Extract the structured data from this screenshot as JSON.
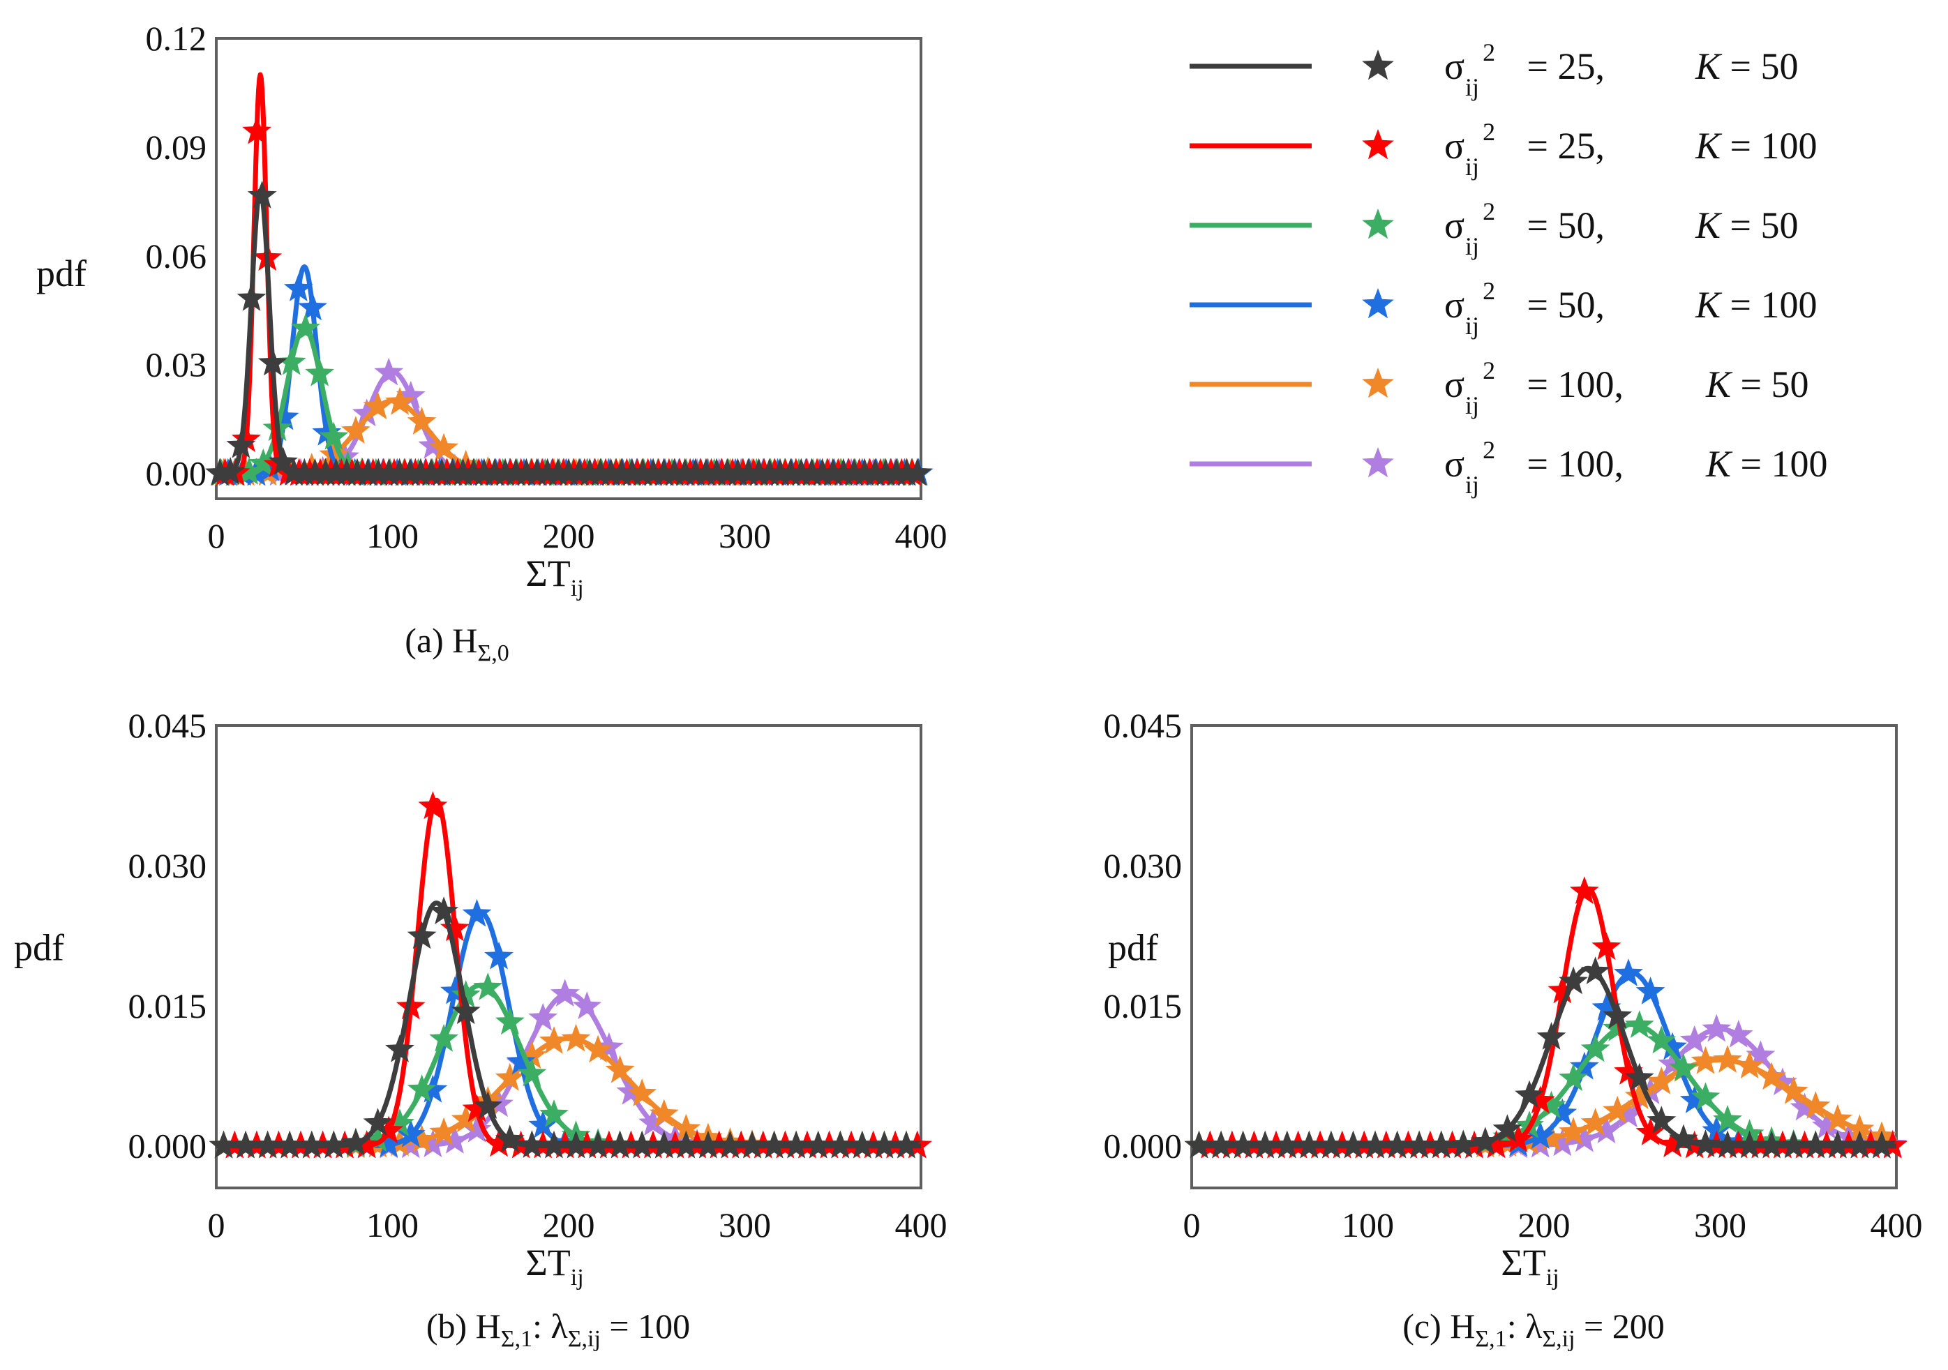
{
  "series_styles": [
    {
      "sigma2": "25",
      "K": "50",
      "color": "#3d3d3d"
    },
    {
      "sigma2": "25",
      "K": "100",
      "color": "#ff0000"
    },
    {
      "sigma2": "50",
      "K": "50",
      "color": "#3cae63"
    },
    {
      "sigma2": "50",
      "K": "100",
      "color": "#1f6fe0"
    },
    {
      "sigma2": "100",
      "K": "50",
      "color": "#f0882a"
    },
    {
      "sigma2": "100",
      "K": "100",
      "color": "#b07ee0"
    }
  ],
  "legend": {
    "sigma": "σ",
    "sub": "ij",
    "sup": "2",
    "eq": " = ",
    "comma": ",",
    "k_label": "K"
  },
  "chart_data": [
    {
      "type": "line",
      "caption": {
        "prefix": "(a) H",
        "sub": "Σ,0",
        "suffix": ""
      },
      "xlabel": {
        "main": "ΣT",
        "sub": "ij"
      },
      "ylabel": "pdf",
      "xlim": [
        0,
        400
      ],
      "ylim": [
        -0.007,
        0.12
      ],
      "xticks": [
        "0",
        "100",
        "200",
        "300",
        "400"
      ],
      "yticks": [
        "0.00",
        "0.03",
        "0.06",
        "0.09",
        "0.12"
      ],
      "ytick_values": [
        0,
        0.03,
        0.06,
        0.09,
        0.12
      ],
      "marker_spacing": [
        6,
        6,
        8,
        8,
        12.5,
        12.5
      ],
      "series": [
        {
          "name": "σij² = 25, K = 50",
          "mean": 25,
          "peak": 0.078,
          "sd": 5.1
        },
        {
          "name": "σij² = 25, K = 100",
          "mean": 25,
          "peak": 0.11,
          "sd": 3.6
        },
        {
          "name": "σij² = 50, K = 50",
          "mean": 50,
          "peak": 0.04,
          "sd": 10
        },
        {
          "name": "σij² = 50, K = 100",
          "mean": 50,
          "peak": 0.057,
          "sd": 7
        },
        {
          "name": "σij² = 100, K = 50",
          "mean": 100,
          "peak": 0.02,
          "sd": 20
        },
        {
          "name": "σij² = 100, K = 100",
          "mean": 100,
          "peak": 0.028,
          "sd": 14.1
        }
      ]
    },
    {
      "type": "line",
      "caption": {
        "prefix": "(b) H",
        "sub": "Σ,1",
        "suffix": ": λ",
        "sub2": "Σ,ij",
        "suffix2": " = 100"
      },
      "xlabel": {
        "main": "ΣT",
        "sub": "ij"
      },
      "ylabel": "pdf",
      "xlim": [
        0,
        400
      ],
      "ylim": [
        -0.0045,
        0.045
      ],
      "xticks": [
        "0",
        "100",
        "200",
        "300",
        "400"
      ],
      "yticks": [
        "0.000",
        "0.015",
        "0.030",
        "0.045"
      ],
      "ytick_values": [
        0,
        0.015,
        0.03,
        0.045
      ],
      "marker_spacing": [
        12.5,
        12.5,
        12.5,
        12.5,
        12.5,
        12.5
      ],
      "series": [
        {
          "name": "σij² = 25, K = 50",
          "mean": 125,
          "peak": 0.026,
          "sd": 15.3
        },
        {
          "name": "σij² = 25, K = 100",
          "mean": 125,
          "peak": 0.037,
          "sd": 10.8
        },
        {
          "name": "σij² = 50, K = 50",
          "mean": 150,
          "peak": 0.0172,
          "sd": 23
        },
        {
          "name": "σij² = 50, K = 100",
          "mean": 150,
          "peak": 0.025,
          "sd": 16
        },
        {
          "name": "σij² = 100, K = 50",
          "mean": 200,
          "peak": 0.0115,
          "sd": 34.6
        },
        {
          "name": "σij² = 100, K = 100",
          "mean": 200,
          "peak": 0.0163,
          "sd": 24.5
        }
      ]
    },
    {
      "type": "line",
      "caption": {
        "prefix": "(c) H",
        "sub": "Σ,1",
        "suffix": ": λ",
        "sub2": "Σ,ij",
        "suffix2": " = 200"
      },
      "xlabel": {
        "main": "ΣT",
        "sub": "ij"
      },
      "ylabel": "pdf",
      "xlim": [
        0,
        400
      ],
      "ylim": [
        -0.0045,
        0.045
      ],
      "xticks": [
        "0",
        "100",
        "200",
        "300",
        "400"
      ],
      "yticks": [
        "0.000",
        "0.015",
        "0.030",
        "0.045"
      ],
      "ytick_values": [
        0,
        0.015,
        0.03,
        0.045
      ],
      "marker_spacing": [
        12.5,
        12.5,
        12.5,
        12.5,
        12.5,
        12.5
      ],
      "series": [
        {
          "name": "σij² = 25, K = 50",
          "mean": 225,
          "peak": 0.019,
          "sd": 21
        },
        {
          "name": "σij² = 25, K = 100",
          "mean": 225,
          "peak": 0.0275,
          "sd": 14.5
        },
        {
          "name": "σij² = 50, K = 50",
          "mean": 250,
          "peak": 0.013,
          "sd": 30.7
        },
        {
          "name": "σij² = 50, K = 100",
          "mean": 250,
          "peak": 0.0185,
          "sd": 21.6
        },
        {
          "name": "σij² = 100, K = 50",
          "mean": 300,
          "peak": 0.0092,
          "sd": 43.4
        },
        {
          "name": "σij² = 100, K = 100",
          "mean": 300,
          "peak": 0.0125,
          "sd": 31.9
        }
      ]
    }
  ]
}
